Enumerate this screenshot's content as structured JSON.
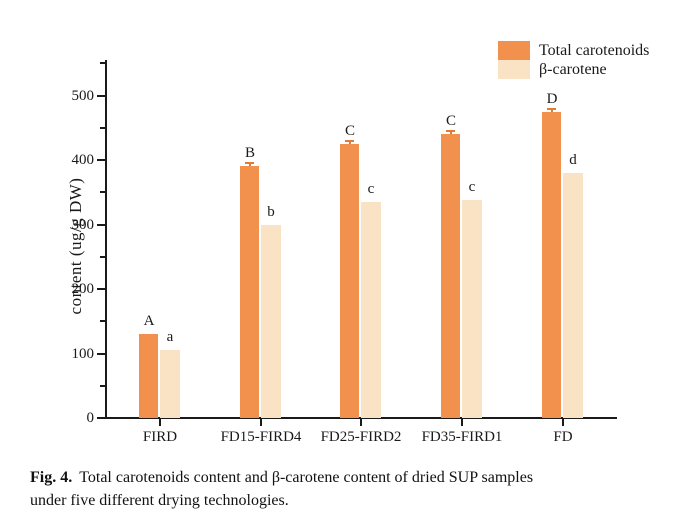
{
  "figure": {
    "caption_label": "Fig. 4.",
    "caption_line1": "Total carotenoids content and β-carotene content of dried SUP samples",
    "caption_line2": "under five different drying technologies."
  },
  "chart_data": {
    "type": "bar",
    "title": "",
    "categories": [
      "FIRD",
      "FD15-FIRD4",
      "FD25-FIRD2",
      "FD35-FIRD1",
      "FD"
    ],
    "series": [
      {
        "name": "Total carotenoids",
        "color": "#f2904e",
        "values": [
          130,
          390,
          425,
          440,
          475
        ],
        "bar_labels": [
          "A",
          "B",
          "C",
          "C",
          "D"
        ],
        "errors": [
          0,
          3,
          4,
          4,
          4
        ]
      },
      {
        "name": "β-carotene",
        "color": "#fae3c5",
        "values": [
          105,
          300,
          335,
          338,
          380
        ],
        "bar_labels": [
          "a",
          "b",
          "c",
          "c",
          "d"
        ],
        "errors": [
          0,
          0,
          0,
          0,
          0
        ]
      }
    ],
    "xlabel": "",
    "ylabel": "content (ug/g DW)",
    "ylim": [
      0,
      555
    ],
    "yticks": [
      0,
      100,
      200,
      300,
      400,
      500
    ],
    "minor_yticks": [
      50,
      150,
      250,
      350,
      450,
      550
    ],
    "legend_position": "top-right",
    "grid": false,
    "axis_color": "#1a1a1a",
    "error_cap_color": "#e07a35"
  }
}
